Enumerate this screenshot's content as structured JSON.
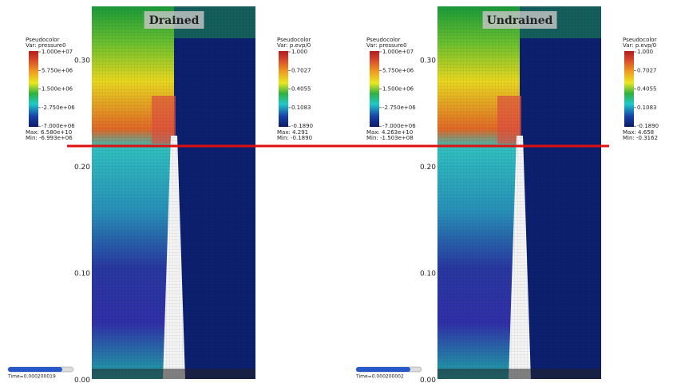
{
  "panels": [
    {
      "title": "Drained",
      "y_axis": [
        "0.30",
        "0.20",
        "0.10",
        "0.00"
      ],
      "legends": [
        {
          "heading": "Pseudocolor",
          "variable": "Var: pressure0",
          "ticks": [
            "1.000e+07",
            "5.750e+06",
            "1.500e+06",
            "-2.750e+06",
            "-7.000e+06"
          ],
          "max": "Max:  6.580e+10",
          "min": "Min:  -6.993e+06"
        },
        {
          "heading": "Pseudocolor",
          "variable": "Var: p.evp/0",
          "ticks": [
            "1.000",
            "0.7027",
            "0.4055",
            "0.1083",
            "-0.1890"
          ],
          "max": "Max:  4.291",
          "min": "Min:  -0.1890"
        }
      ],
      "time": "Time=0.000200019"
    },
    {
      "title": "Undrained",
      "y_axis": [
        "0.30",
        "0.20",
        "0.10",
        "0.00"
      ],
      "legends": [
        {
          "heading": "Pseudocolor",
          "variable": "Var: pressure0",
          "ticks": [
            "1.000e+07",
            "5.750e+06",
            "1.500e+06",
            "-2.750e+06",
            "-7.000e+06"
          ],
          "max": "Max:  4.263e+10",
          "min": "Min:  -1.503e+08"
        },
        {
          "heading": "Pseudocolor",
          "variable": "Var: p.evp/0",
          "ticks": [
            "1.000",
            "0.7027",
            "0.4055",
            "0.1083",
            "-0.1890"
          ],
          "max": "Max:  4.658",
          "min": "Min:  -0.3162"
        }
      ],
      "time": "Time=0.000200002"
    }
  ]
}
